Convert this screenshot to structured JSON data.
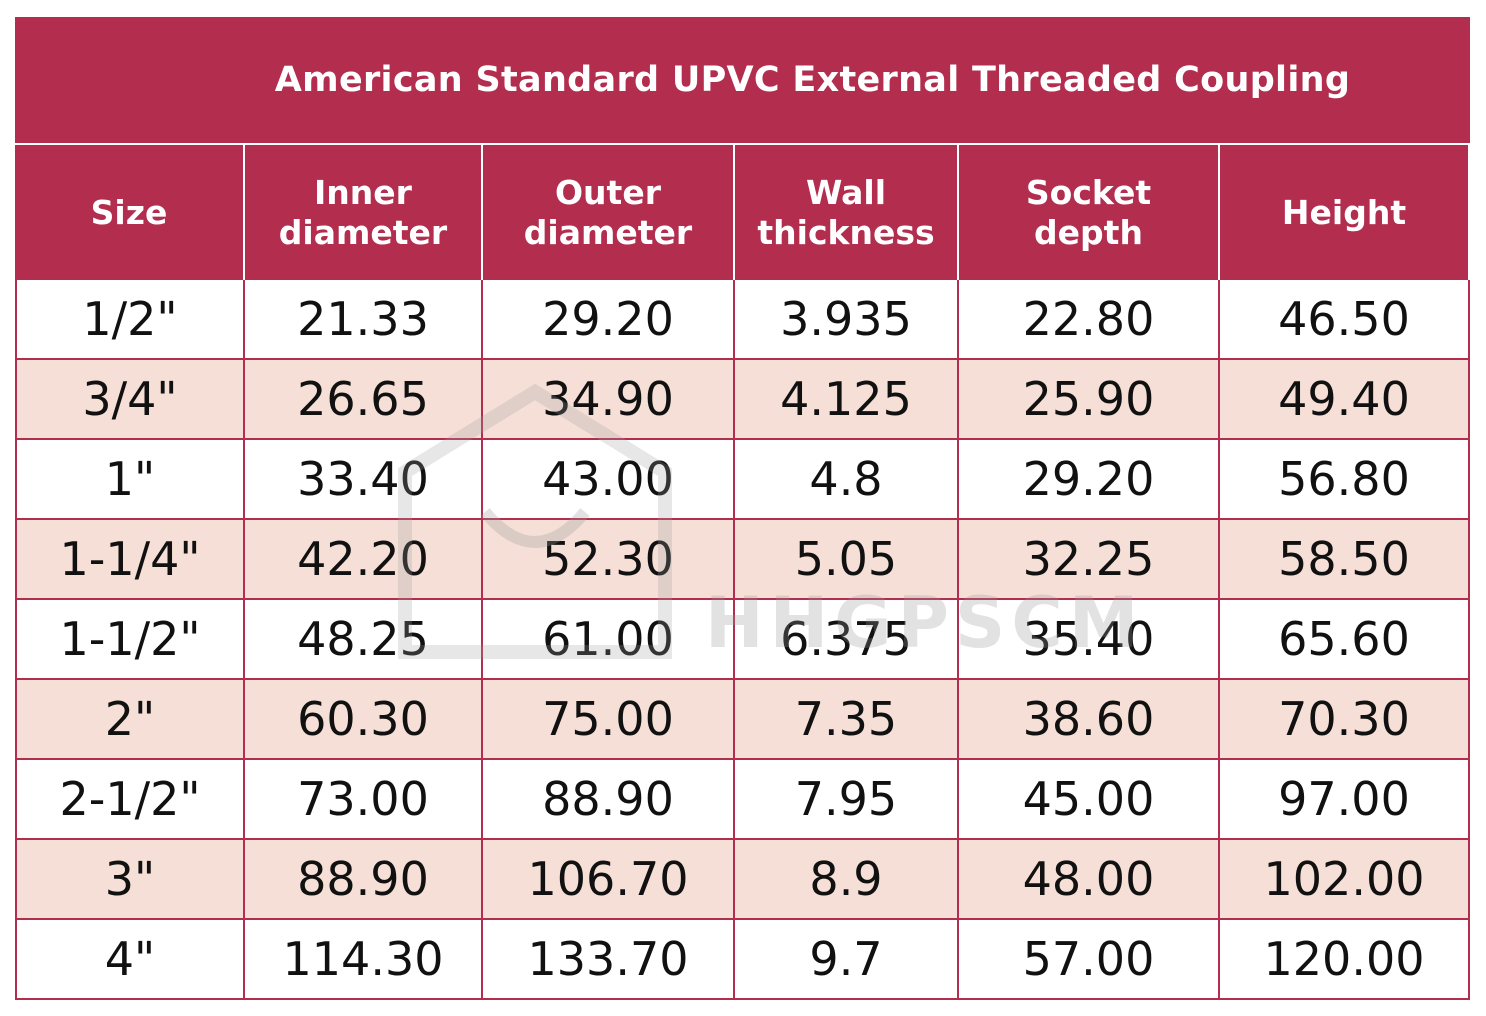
{
  "table": {
    "title": "American Standard UPVC External Threaded Coupling",
    "header": [
      "Size",
      "Inner diameter",
      "Outer diameter",
      "Wall thickness",
      "Socket depth",
      "Height"
    ],
    "rows": [
      [
        "1/2\"",
        "21.33",
        "29.20",
        "3.935",
        "22.80",
        "46.50"
      ],
      [
        "3/4\"",
        "26.65",
        "34.90",
        "4.125",
        "25.90",
        "49.40"
      ],
      [
        "1\"",
        "33.40",
        "43.00",
        "4.8",
        "29.20",
        "56.80"
      ],
      [
        "1-1/4\"",
        "42.20",
        "52.30",
        "5.05",
        "32.25",
        "58.50"
      ],
      [
        "1-1/2\"",
        "48.25",
        "61.00",
        "6.375",
        "35.40",
        "65.60"
      ],
      [
        "2\"",
        "60.30",
        "75.00",
        "7.35",
        "38.60",
        "70.30"
      ],
      [
        "2-1/2\"",
        "73.00",
        "88.90",
        "7.95",
        "45.00",
        "97.00"
      ],
      [
        "3\"",
        "88.90",
        "106.70",
        "8.9",
        "48.00",
        "102.00"
      ],
      [
        "4\"",
        "114.30",
        "133.70",
        "9.7",
        "57.00",
        "120.00"
      ]
    ]
  },
  "watermark": "HHGPSCM"
}
